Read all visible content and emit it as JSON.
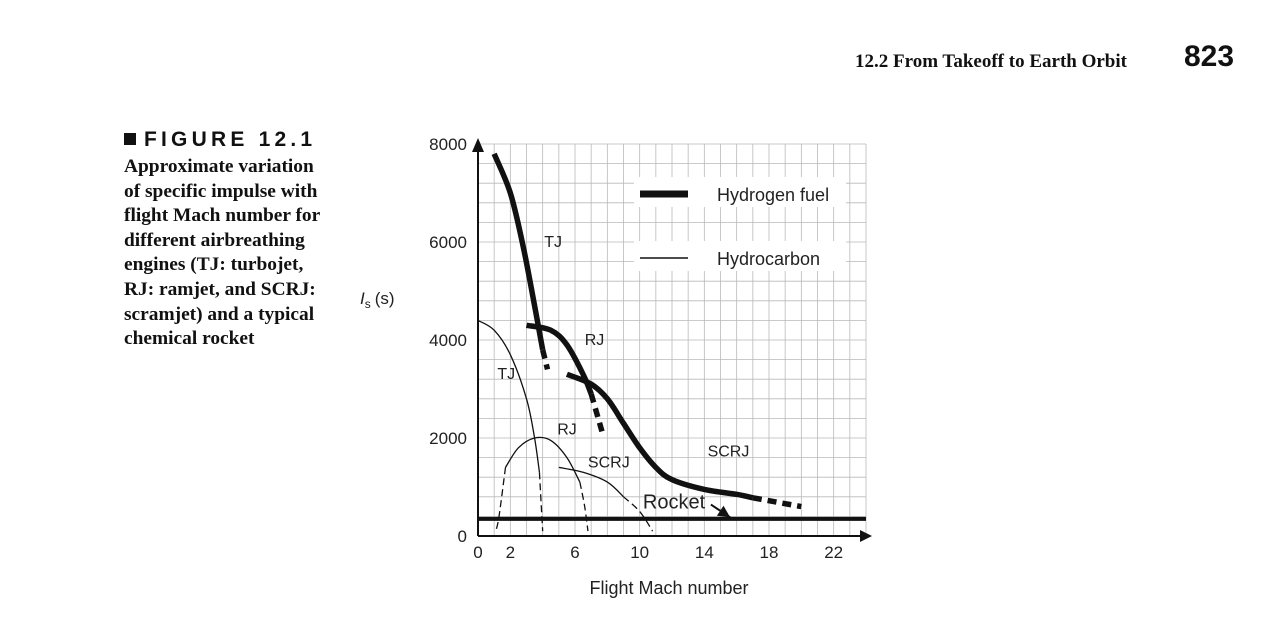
{
  "header": {
    "section": "12.2  From Takeoff to Earth Orbit",
    "page_number": "823"
  },
  "figure": {
    "label": "FIGURE 12.1",
    "caption_lines": [
      "Approximate variation",
      "of specific impulse with",
      "flight Mach number for",
      "different airbreathing",
      "engines (TJ: turbojet,",
      "RJ: ramjet, and SCRJ:",
      "scramjet) and a typical",
      "chemical rocket"
    ]
  },
  "chart_data": {
    "type": "line",
    "xlabel": "Flight Mach number",
    "ylabel": {
      "symbol": "I",
      "subscript": "s",
      "unit": "(s)"
    },
    "xlim": [
      0,
      24
    ],
    "ylim": [
      0,
      8000
    ],
    "x_ticks": [
      "0",
      "2",
      "6",
      "10",
      "14",
      "18",
      "22"
    ],
    "x_tick_values": [
      0,
      2,
      6,
      10,
      14,
      18,
      22
    ],
    "y_ticks": [
      "0",
      "2000",
      "4000",
      "6000",
      "8000"
    ],
    "y_tick_values": [
      0,
      2000,
      4000,
      6000,
      8000
    ],
    "grid": true,
    "legend_position": "top-right",
    "legend": [
      {
        "label": "Hydrogen fuel",
        "style": "thick"
      },
      {
        "label": "Hydrocarbon",
        "style": "thin"
      }
    ],
    "series": [
      {
        "fuel": "Hydrogen fuel",
        "engine": "TJ",
        "points": [
          [
            1,
            7800
          ],
          [
            2,
            7000
          ],
          [
            2.8,
            5900
          ],
          [
            3.5,
            4700
          ],
          [
            4,
            3800
          ]
        ],
        "extension": [
          [
            4,
            3800
          ],
          [
            4.3,
            3400
          ]
        ]
      },
      {
        "fuel": "Hydrogen fuel",
        "engine": "RJ",
        "points": [
          [
            3,
            4300
          ],
          [
            4.5,
            4200
          ],
          [
            5.5,
            3900
          ],
          [
            6.5,
            3300
          ],
          [
            7,
            2900
          ]
        ],
        "extension": [
          [
            7,
            2900
          ],
          [
            7.7,
            2100
          ]
        ]
      },
      {
        "fuel": "Hydrogen fuel",
        "engine": "SCRJ",
        "points": [
          [
            5.5,
            3300
          ],
          [
            7,
            3100
          ],
          [
            8,
            2800
          ],
          [
            9,
            2300
          ],
          [
            10,
            1800
          ],
          [
            11,
            1400
          ],
          [
            12,
            1150
          ],
          [
            14,
            950
          ],
          [
            16,
            850
          ],
          [
            17,
            780
          ]
        ],
        "extension": [
          [
            17,
            780
          ],
          [
            20,
            600
          ]
        ]
      },
      {
        "fuel": "Hydrocarbon",
        "engine": "TJ",
        "points": [
          [
            0,
            4400
          ],
          [
            1,
            4200
          ],
          [
            2,
            3700
          ],
          [
            3,
            2800
          ],
          [
            3.5,
            2000
          ],
          [
            3.8,
            1300
          ]
        ],
        "extension": [
          [
            3.8,
            1300
          ],
          [
            4,
            100
          ]
        ]
      },
      {
        "fuel": "Hydrocarbon",
        "engine": "RJ",
        "points": [
          [
            1.7,
            1400
          ],
          [
            2.5,
            1800
          ],
          [
            3.5,
            2000
          ],
          [
            4.5,
            1950
          ],
          [
            5.5,
            1600
          ],
          [
            6.3,
            1100
          ]
        ],
        "extension": [
          [
            1.7,
            1400
          ],
          [
            1.3,
            400
          ],
          [
            1.1,
            100
          ]
        ],
        "extension2": [
          [
            6.3,
            1100
          ],
          [
            6.6,
            600
          ],
          [
            6.8,
            100
          ]
        ]
      },
      {
        "fuel": "Hydrocarbon",
        "engine": "SCRJ",
        "points": [
          [
            5,
            1400
          ],
          [
            6.5,
            1300
          ],
          [
            8,
            1100
          ],
          [
            9,
            800
          ]
        ],
        "extension": [
          [
            9,
            800
          ],
          [
            10,
            500
          ],
          [
            10.8,
            100
          ]
        ]
      },
      {
        "fuel": "Rocket",
        "engine": "Rocket",
        "points": [
          [
            0,
            350
          ],
          [
            24,
            350
          ]
        ]
      }
    ],
    "curve_labels": [
      {
        "text": "TJ",
        "x": 4.1,
        "y": 5900
      },
      {
        "text": "RJ",
        "x": 6.6,
        "y": 3900
      },
      {
        "text": "SCRJ",
        "x": 14.2,
        "y": 1620
      },
      {
        "text": "TJ",
        "x": 1.2,
        "y": 3200
      },
      {
        "text": "RJ",
        "x": 4.9,
        "y": 2070
      },
      {
        "text": "SCRJ",
        "x": 6.8,
        "y": 1400
      }
    ],
    "annotations": [
      {
        "text": "Rocket",
        "x": 10.2,
        "y": 560,
        "arrow_to": [
          15.6,
          380
        ]
      }
    ]
  }
}
